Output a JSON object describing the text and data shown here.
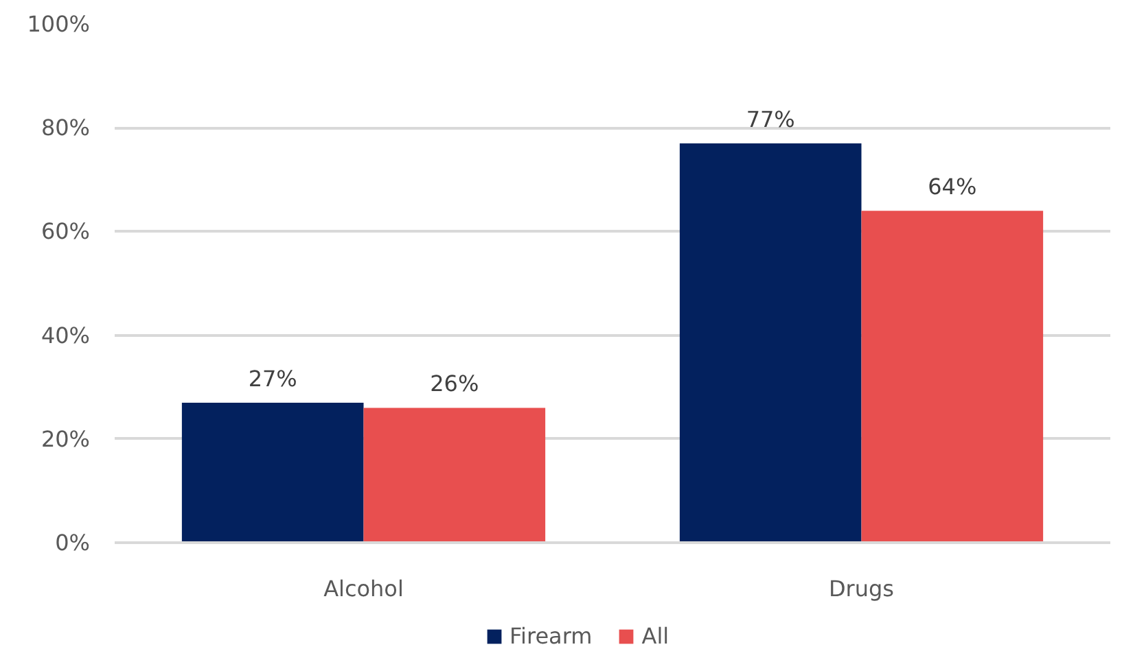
{
  "chart_data": {
    "type": "bar",
    "categories": [
      "Alcohol",
      "Drugs"
    ],
    "series": [
      {
        "name": "Firearm",
        "color": "#03215e",
        "values": [
          27,
          77
        ],
        "value_labels": [
          "27%",
          "77%"
        ]
      },
      {
        "name": "All",
        "color": "#e84f4f",
        "values": [
          26,
          64
        ],
        "value_labels": [
          "26%",
          "64%"
        ]
      }
    ],
    "ylim": [
      0,
      100
    ],
    "yticks": [
      {
        "value": 0,
        "label": "0%"
      },
      {
        "value": 20,
        "label": "20%"
      },
      {
        "value": 40,
        "label": "40%"
      },
      {
        "value": 60,
        "label": "60%"
      },
      {
        "value": 80,
        "label": "80%"
      },
      {
        "value": 100,
        "label": "100%"
      }
    ],
    "grid": "y",
    "legend": "bottom"
  }
}
